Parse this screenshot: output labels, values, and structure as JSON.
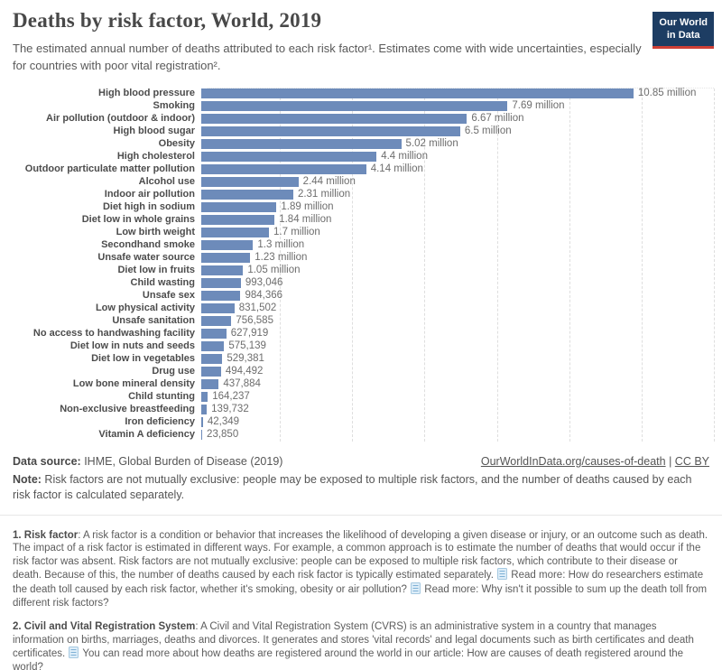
{
  "header": {
    "title": "Deaths by risk factor, World, 2019",
    "subtitle": "The estimated annual number of deaths attributed to each risk factor¹. Estimates come with wide uncertainties, especially for countries with poor vital registration².",
    "logo": {
      "line1": "Our World",
      "line2": "in Data"
    }
  },
  "chart_data": {
    "type": "bar",
    "orientation": "horizontal",
    "title": "Deaths by risk factor, World, 2019",
    "unit": "deaths per year",
    "xlim": [
      0,
      12870000
    ],
    "grid": "vertical dashed gridlines, no axis tick labels shown",
    "legend": "none",
    "bar_color": "#6d8bba",
    "categories": [
      "High blood pressure",
      "Smoking",
      "Air pollution (outdoor & indoor)",
      "High blood sugar",
      "Obesity",
      "High cholesterol",
      "Outdoor particulate matter pollution",
      "Alcohol use",
      "Indoor air pollution",
      "Diet high in sodium",
      "Diet low in whole grains",
      "Low birth weight",
      "Secondhand smoke",
      "Unsafe water source",
      "Diet low in fruits",
      "Child wasting",
      "Unsafe sex",
      "Low physical activity",
      "Unsafe sanitation",
      "No access to handwashing facility",
      "Diet low in nuts and seeds",
      "Diet low in vegetables",
      "Drug use",
      "Low bone mineral density",
      "Child stunting",
      "Non-exclusive breastfeeding",
      "Iron deficiency",
      "Vitamin A deficiency"
    ],
    "values": [
      10850000,
      7690000,
      6670000,
      6500000,
      5020000,
      4400000,
      4140000,
      2440000,
      2310000,
      1890000,
      1840000,
      1700000,
      1300000,
      1230000,
      1050000,
      993046,
      984366,
      831502,
      756585,
      627919,
      575139,
      529381,
      494492,
      437884,
      164237,
      139732,
      42349,
      23850
    ],
    "value_labels": [
      "10.85 million",
      "7.69 million",
      "6.67 million",
      "6.5 million",
      "5.02 million",
      "4.4 million",
      "4.14 million",
      "2.44 million",
      "2.31 million",
      "1.89 million",
      "1.84 million",
      "1.7 million",
      "1.3 million",
      "1.23 million",
      "1.05 million",
      "993,046",
      "984,366",
      "831,502",
      "756,585",
      "627,919",
      "575,139",
      "529,381",
      "494,492",
      "437,884",
      "164,237",
      "139,732",
      "42,349",
      "23,850"
    ]
  },
  "footer": {
    "datasource_label": "Data source:",
    "datasource_value": " IHME, Global Burden of Disease (2019)",
    "link": "OurWorldInData.org/causes-of-death",
    "separator": " | ",
    "license": "CC BY",
    "note_label": "Note:",
    "note_text": " Risk factors are not mutually exclusive: people may be exposed to multiple risk factors, and the number of deaths caused by each risk factor is calculated separately."
  },
  "footnotes": {
    "f1": {
      "lead": "1. Risk factor",
      "text1": ": A risk factor is a condition or behavior that increases the likelihood of developing a given disease or injury, or an outcome such as death. The impact of a risk factor is estimated in different ways. For example, a common approach is to estimate the number of deaths that would occur if the risk factor was absent. Risk factors are not mutually exclusive: people can be exposed to multiple risk factors, which contribute to their disease or death. Because of this, the number of deaths caused by each risk factor is typically estimated separately. ",
      "read_more_1": " Read more: How do researchers estimate the death toll caused by each risk factor, whether it's smoking, obesity or air pollution? ",
      "read_more_2": " Read more: Why isn't it possible to sum up the death toll from different risk factors?"
    },
    "f2": {
      "lead": "2. Civil and Vital Registration System",
      "text1": ": A Civil and Vital Registration System (CVRS) is an administrative system in a country that manages information on births, marriages, deaths and divorces. It generates and stores 'vital records' and legal documents such as birth certificates and death certificates. ",
      "read_more_1": " You can read more about how deaths are registered around the world in our article: How are causes of death registered around the world?"
    }
  }
}
